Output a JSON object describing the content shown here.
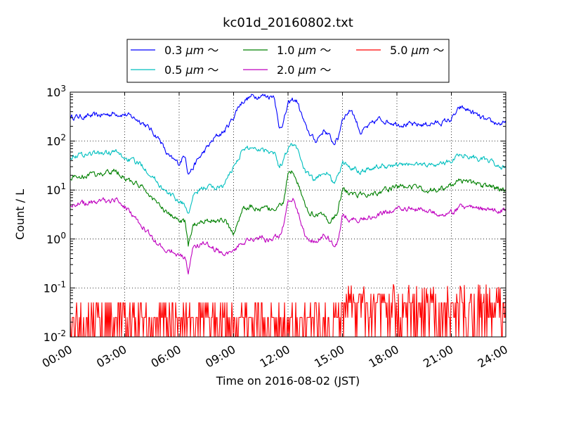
{
  "chart_data": {
    "type": "line",
    "title": "kc01d_20160802.txt",
    "xlabel": "Time on 2016-08-02 (JST)",
    "ylabel": "Count / L",
    "yscale": "log",
    "xlim": [
      "00:00",
      "24:00"
    ],
    "ylim": [
      0.01,
      1000
    ],
    "x_ticks": [
      "00:00",
      "03:00",
      "06:00",
      "09:00",
      "12:00",
      "15:00",
      "18:00",
      "21:00",
      "24:00"
    ],
    "y_ticks": [
      {
        "base": "10",
        "exp": "-2"
      },
      {
        "base": "10",
        "exp": "-1"
      },
      {
        "base": "10",
        "exp": "0"
      },
      {
        "base": "10",
        "exp": "1"
      },
      {
        "base": "10",
        "exp": "2"
      },
      {
        "base": "10",
        "exp": "3"
      }
    ],
    "grid": true,
    "legend": "top-center, outside plot, 3 columns",
    "series": [
      {
        "name": "0.3 μm ～",
        "legend_parts": [
          "0.3 ",
          "μm",
          " ～"
        ],
        "color": "#0000ff",
        "x": [
          "00:00",
          "01:00",
          "02:00",
          "02:30",
          "03:00",
          "03:30",
          "04:00",
          "04:30",
          "05:00",
          "05:15",
          "05:30",
          "06:00",
          "06:20",
          "06:30",
          "06:45",
          "07:00",
          "07:30",
          "08:00",
          "08:30",
          "09:00",
          "09:15",
          "09:30",
          "10:00",
          "10:30",
          "11:00",
          "11:15",
          "11:30",
          "11:45",
          "12:00",
          "12:15",
          "12:30",
          "13:00",
          "13:30",
          "13:45",
          "14:00",
          "14:15",
          "14:30",
          "14:45",
          "15:00",
          "15:30",
          "16:00",
          "17:00",
          "18:00",
          "19:00",
          "20:00",
          "20:30",
          "21:00",
          "21:30",
          "22:00",
          "22:30",
          "23:00",
          "24:00"
        ],
        "values": [
          310,
          320,
          350,
          370,
          350,
          300,
          240,
          160,
          100,
          60,
          45,
          35,
          55,
          22,
          28,
          40,
          70,
          120,
          160,
          310,
          500,
          650,
          820,
          860,
          820,
          870,
          180,
          250,
          550,
          700,
          650,
          180,
          100,
          130,
          170,
          130,
          90,
          110,
          300,
          450,
          150,
          280,
          230,
          210,
          230,
          240,
          280,
          480,
          420,
          320,
          250,
          220
        ]
      },
      {
        "name": "0.5 μm ～",
        "legend_parts": [
          "0.5 ",
          "μm",
          " ～"
        ],
        "color": "#00bfbf",
        "x": [
          "00:00",
          "01:00",
          "02:00",
          "02:30",
          "03:00",
          "03:30",
          "04:00",
          "04:30",
          "05:00",
          "05:15",
          "05:30",
          "06:00",
          "06:20",
          "06:30",
          "06:45",
          "07:00",
          "07:30",
          "08:00",
          "08:30",
          "09:00",
          "09:15",
          "09:30",
          "10:00",
          "10:30",
          "11:00",
          "11:15",
          "11:30",
          "11:45",
          "12:00",
          "12:15",
          "12:30",
          "13:00",
          "13:30",
          "13:45",
          "14:00",
          "14:15",
          "14:30",
          "14:45",
          "15:00",
          "15:30",
          "16:00",
          "17:00",
          "18:00",
          "19:00",
          "20:00",
          "20:30",
          "21:00",
          "21:30",
          "22:00",
          "22:30",
          "23:00",
          "24:00"
        ],
        "values": [
          50,
          55,
          58,
          60,
          45,
          38,
          32,
          20,
          12,
          9,
          8,
          6,
          5,
          3,
          7,
          9,
          12,
          11,
          13,
          30,
          45,
          65,
          75,
          70,
          65,
          60,
          30,
          40,
          75,
          85,
          70,
          22,
          15,
          20,
          25,
          20,
          14,
          18,
          35,
          30,
          25,
          30,
          32,
          34,
          33,
          35,
          40,
          55,
          50,
          45,
          38,
          28
        ]
      },
      {
        "name": "1.0 μm ～",
        "legend_parts": [
          "1.0 ",
          "μm",
          " ～"
        ],
        "color": "#008000",
        "x": [
          "00:00",
          "01:00",
          "02:00",
          "02:30",
          "03:00",
          "03:30",
          "04:00",
          "04:30",
          "05:00",
          "05:15",
          "05:30",
          "06:00",
          "06:20",
          "06:30",
          "06:45",
          "07:00",
          "07:30",
          "08:00",
          "08:30",
          "09:00",
          "09:15",
          "09:30",
          "10:00",
          "10:30",
          "11:00",
          "11:15",
          "11:30",
          "11:45",
          "12:00",
          "12:15",
          "12:30",
          "13:00",
          "13:30",
          "13:45",
          "14:00",
          "14:15",
          "14:30",
          "14:45",
          "15:00",
          "15:30",
          "16:00",
          "17:00",
          "18:00",
          "19:00",
          "20:00",
          "20:30",
          "21:00",
          "21:30",
          "22:00",
          "22:30",
          "23:00",
          "24:00"
        ],
        "values": [
          18,
          20,
          22,
          25,
          18,
          14,
          11,
          7,
          4.5,
          3.5,
          3,
          2.5,
          2.2,
          0.7,
          1.8,
          2.2,
          2.5,
          2.3,
          2.5,
          1.2,
          2.5,
          4,
          4.5,
          4.2,
          4,
          4,
          4.5,
          6,
          20,
          25,
          15,
          4,
          3,
          3.5,
          3,
          2.2,
          2.5,
          4,
          10,
          8,
          8,
          9,
          12,
          11,
          10,
          11,
          12,
          16,
          14,
          13,
          12,
          10
        ]
      },
      {
        "name": "2.0 μm ～",
        "legend_parts": [
          "2.0 ",
          "μm",
          " ～"
        ],
        "color": "#bf00bf",
        "x": [
          "00:00",
          "01:00",
          "02:00",
          "02:30",
          "03:00",
          "03:30",
          "04:00",
          "04:30",
          "05:00",
          "05:15",
          "05:30",
          "06:00",
          "06:20",
          "06:30",
          "06:45",
          "07:00",
          "07:30",
          "08:00",
          "08:30",
          "09:00",
          "09:15",
          "09:30",
          "10:00",
          "10:30",
          "11:00",
          "11:15",
          "11:30",
          "11:45",
          "12:00",
          "12:15",
          "12:30",
          "13:00",
          "13:30",
          "13:45",
          "14:00",
          "14:15",
          "14:30",
          "14:45",
          "15:00",
          "15:30",
          "16:00",
          "17:00",
          "18:00",
          "19:00",
          "20:00",
          "20:30",
          "21:00",
          "21:30",
          "22:00",
          "22:30",
          "23:00",
          "24:00"
        ],
        "values": [
          5,
          5.5,
          6,
          6.5,
          4.5,
          3,
          1.8,
          1.1,
          0.7,
          0.6,
          0.6,
          0.5,
          0.4,
          0.2,
          0.6,
          0.7,
          0.8,
          0.6,
          0.5,
          0.5,
          0.7,
          0.9,
          1,
          1.1,
          0.95,
          1,
          1.2,
          2,
          6,
          7,
          4,
          1,
          0.9,
          1,
          1.2,
          1,
          0.8,
          0.9,
          3,
          2.5,
          2.5,
          3,
          4,
          4.2,
          3.5,
          3.3,
          3.5,
          4.5,
          4.5,
          4,
          3.8,
          4
        ]
      },
      {
        "name": "5.0 μm ～",
        "legend_parts": [
          "5.0 ",
          "μm",
          " ～"
        ],
        "color": "#ff0000",
        "x_range": [
          "00:00",
          "24:00"
        ],
        "levels": [
          0.01,
          0.025,
          0.05
        ],
        "range_before_15h": [
          0.01,
          0.05
        ],
        "range_after_15h": [
          0.01,
          0.12
        ],
        "spike_max": 0.12
      }
    ]
  }
}
